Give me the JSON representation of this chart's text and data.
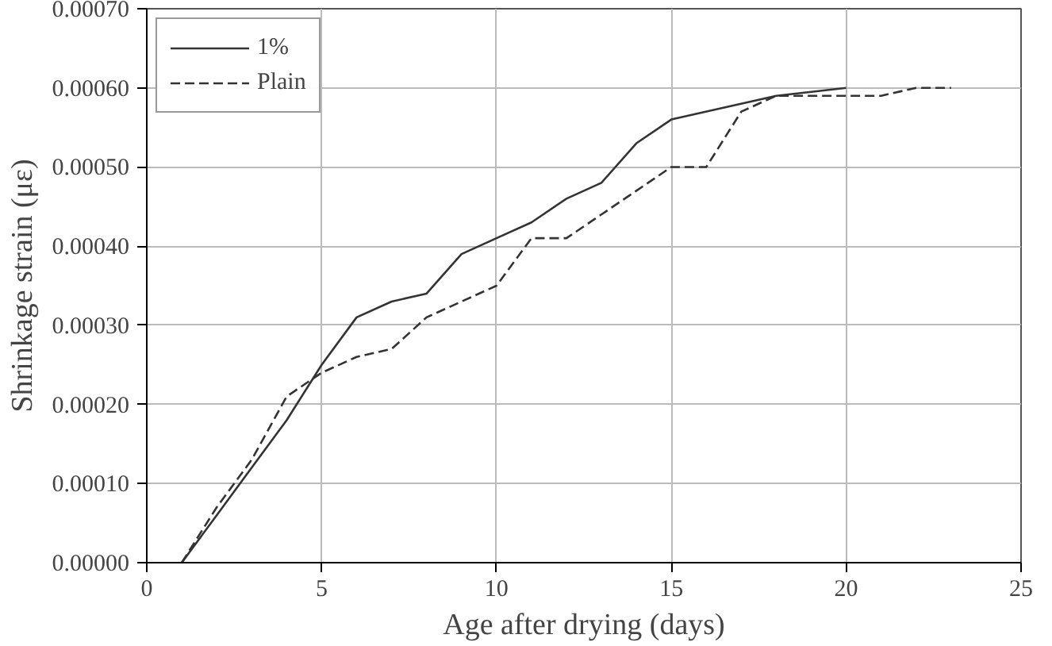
{
  "chart_data": {
    "type": "line",
    "xlabel": "Age after drying (days)",
    "ylabel": "Shrinkage strain (με)",
    "xlim": [
      0,
      25
    ],
    "xticks": [
      0,
      5,
      10,
      15,
      20,
      25
    ],
    "ylim": [
      0,
      0.0007
    ],
    "yticks": [
      {
        "value": 0,
        "label": "0.00000"
      },
      {
        "value": 0.0001,
        "label": "0.00010"
      },
      {
        "value": 0.0002,
        "label": "0.00020"
      },
      {
        "value": 0.0003,
        "label": "0.00030"
      },
      {
        "value": 0.0004,
        "label": "0.00040"
      },
      {
        "value": 0.0005,
        "label": "0.00050"
      },
      {
        "value": 0.0006,
        "label": "0.00060"
      },
      {
        "value": 0.0007,
        "label": "0.00070"
      }
    ],
    "grid": true,
    "legend": "top left",
    "series": [
      {
        "name": "1%",
        "color": "#333333",
        "line_style": "solid",
        "x": [
          1,
          2,
          3,
          4,
          5,
          6,
          7,
          8,
          9,
          10,
          11,
          12,
          13,
          14,
          15,
          18,
          20
        ],
        "values": [
          0,
          6e-05,
          0.00012,
          0.00018,
          0.00025,
          0.00031,
          0.00033,
          0.00034,
          0.00039,
          0.00041,
          0.00043,
          0.00046,
          0.00048,
          0.00053,
          0.00056,
          0.00059,
          0.0006
        ]
      },
      {
        "name": "Plain",
        "color": "#333333",
        "line_style": "dashed",
        "x": [
          1,
          2,
          3,
          4,
          5,
          6,
          7,
          8,
          9,
          10,
          11,
          12,
          13,
          14,
          15,
          16,
          17,
          18,
          19,
          20,
          21,
          22,
          23
        ],
        "values": [
          0,
          7e-05,
          0.00013,
          0.00021,
          0.00024,
          0.00026,
          0.00027,
          0.00031,
          0.00033,
          0.00035,
          0.00041,
          0.00041,
          0.00044,
          0.00047,
          0.0005,
          0.0005,
          0.00057,
          0.00059,
          0.00059,
          0.00059,
          0.00059,
          0.0006,
          0.0006
        ]
      }
    ]
  }
}
